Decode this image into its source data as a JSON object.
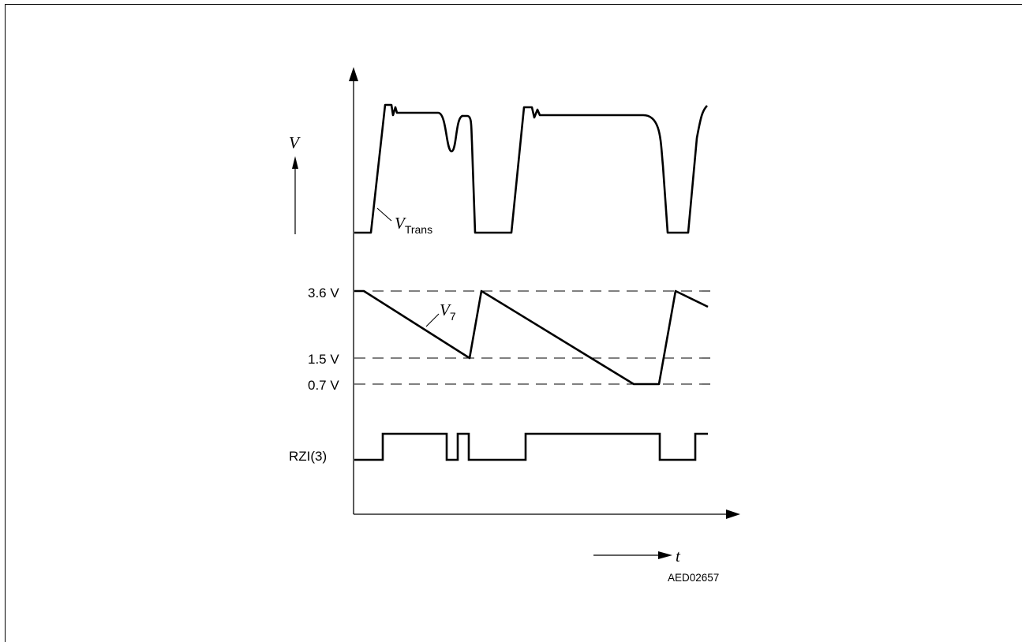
{
  "axis_label_v": "V",
  "axis_label_t": "t",
  "signals": {
    "vtrans": {
      "main": "V",
      "sub": "Trans"
    },
    "v7": {
      "main": "V",
      "sub": "7"
    },
    "rzi": "RZI(3)"
  },
  "levels": {
    "high": "3.6 V",
    "mid": "1.5 V",
    "low": "0.7 V"
  },
  "figure_id": "AED02657"
}
